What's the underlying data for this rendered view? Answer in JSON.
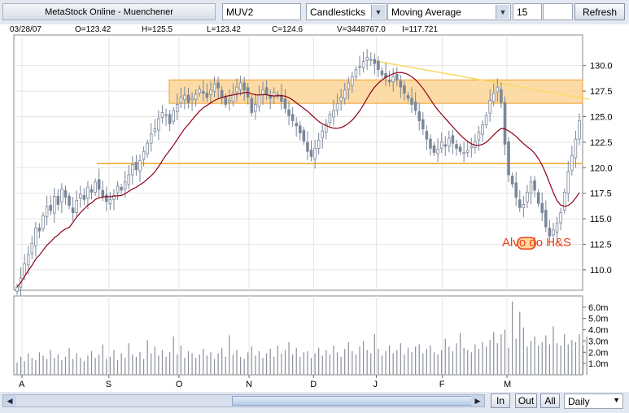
{
  "toolbar": {
    "title": "MetaStock Online - Muenchener",
    "symbol_value": "MUV2",
    "chart_type": "Candlesticks",
    "indicator": "Moving Average",
    "period_value": "15",
    "refresh_label": "Refresh"
  },
  "quote": {
    "date": "03/28/07",
    "open": "O=123.42",
    "high": "H=125.5",
    "low": "L=123.42",
    "close": "C=124.6",
    "volume": "V=3448767.0",
    "indicator": "I=117.721"
  },
  "annotation": {
    "label": "Alvo do H&S"
  },
  "bottom": {
    "zoom_in_label": "In",
    "zoom_out_label": "Out",
    "all_label": "All",
    "interval": "Daily"
  },
  "colors": {
    "candle": "#7a8699",
    "moving_average": "#8b0016",
    "support_line": "#f5a623",
    "resistance_band": "#fcd596",
    "trend_line": "#f6dc6a",
    "annotation": "#e8401c"
  },
  "chart_data": {
    "type": "candlestick",
    "price_axis": {
      "ylim": [
        108,
        133
      ],
      "ticks": [
        "130.0",
        "127.5",
        "125.0",
        "122.5",
        "120.0",
        "117.5",
        "115.0",
        "112.5",
        "110.0"
      ]
    },
    "volume_axis": {
      "ylim": [
        0,
        7000000
      ],
      "ticks": [
        "6.0m",
        "5.0m",
        "4.0m",
        "3.0m",
        "2.0m",
        "1.0m"
      ]
    },
    "month_labels": [
      "A",
      "S",
      "O",
      "N",
      "D",
      "J",
      "F",
      "M"
    ],
    "moving_average_period": 15,
    "support_level": 120.4,
    "resistance_band": [
      126.3,
      128.6
    ],
    "trend_line": {
      "from": [
        "J",
        130.5
      ],
      "to": [
        "end",
        126.7
      ]
    },
    "target_level": 112.6,
    "closes": [
      108.3,
      109.2,
      110.6,
      111.5,
      112.6,
      114.1,
      113.8,
      115.3,
      116.2,
      115.8,
      117.2,
      116.4,
      117.9,
      117.1,
      116.3,
      115.6,
      116.8,
      117.4,
      116.9,
      118.1,
      117.6,
      118.6,
      117.9,
      117.2,
      116.7,
      116.9,
      117.3,
      118.2,
      117.8,
      118.6,
      119.3,
      120.3,
      119.8,
      120.7,
      121.6,
      122.4,
      123.3,
      123.8,
      124.8,
      125.4,
      125.2,
      124.3,
      125.6,
      126.2,
      126.9,
      127.1,
      126.4,
      126.8,
      127.2,
      127.7,
      127.3,
      126.9,
      127.6,
      128.2,
      127.8,
      126.9,
      126.2,
      126.6,
      127.3,
      127.9,
      128.3,
      127.6,
      126.9,
      125.4,
      126.2,
      127.1,
      127.6,
      127.2,
      126.8,
      127.4,
      127.1,
      126.5,
      125.8,
      125.1,
      124.6,
      124.1,
      123.4,
      122.6,
      121.6,
      121.1,
      121.9,
      122.7,
      123.6,
      124.3,
      125.2,
      125.6,
      126.3,
      126.9,
      127.6,
      128.3,
      128.9,
      129.6,
      129.9,
      130.4,
      130.8,
      130.6,
      130.2,
      129.6,
      129.1,
      128.8,
      128.4,
      128.9,
      128.6,
      127.9,
      127.3,
      126.8,
      126.2,
      125.6,
      124.6,
      123.8,
      122.8,
      121.9,
      121.5,
      121.8,
      122.5,
      122.1,
      122.9,
      122.4,
      121.9,
      121.6,
      121.5,
      121.7,
      122.1,
      122.6,
      123.5,
      124.2,
      125.1,
      126.6,
      127.3,
      127.9,
      126.4,
      122.3,
      119.3,
      118.4,
      117.1,
      116.1,
      116.4,
      117.6,
      118.6,
      117.8,
      116.5,
      115.6,
      114.2,
      113.3,
      113.9,
      114.6,
      115.6,
      117.6,
      119.6,
      121.2,
      122.8,
      124.6
    ],
    "volume_millions": [
      1.1,
      1.6,
      1.2,
      1.9,
      1.5,
      1.3,
      2.0,
      1.7,
      1.4,
      2.2,
      1.5,
      1.8,
      1.3,
      1.6,
      2.4,
      1.4,
      1.9,
      1.5,
      1.2,
      1.7,
      2.1,
      1.5,
      1.8,
      2.7,
      1.4,
      1.6,
      2.2,
      1.3,
      1.9,
      1.5,
      2.8,
      1.8,
      1.6,
      2.0,
      1.4,
      3.1,
      1.9,
      2.5,
      1.7,
      2.2,
      1.6,
      2.0,
      3.4,
      1.8,
      2.6,
      1.5,
      2.1,
      1.9,
      1.5,
      1.8,
      2.3,
      1.7,
      2.0,
      1.4,
      1.9,
      2.4,
      1.6,
      3.5,
      1.8,
      2.2,
      1.6,
      1.4,
      2.0,
      2.5,
      1.7,
      2.1,
      1.5,
      1.9,
      2.3,
      1.6,
      2.6,
      1.9,
      2.2,
      2.9,
      1.8,
      2.4,
      1.6,
      2.0,
      2.1,
      1.5,
      1.9,
      2.4,
      1.7,
      2.2,
      1.8,
      2.6,
      2.0,
      1.6,
      2.3,
      2.9,
      2.1,
      1.8,
      2.5,
      3.0,
      2.2,
      1.9,
      3.6,
      2.3,
      1.7,
      2.1,
      2.6,
      1.9,
      2.2,
      2.8,
      1.8,
      2.4,
      2.0,
      2.5,
      2.7,
      1.9,
      2.3,
      2.6,
      2.0,
      1.8,
      2.2,
      3.2,
      2.5,
      2.1,
      2.8,
      3.7,
      2.4,
      2.2,
      2.0,
      2.7,
      2.3,
      2.9,
      2.5,
      3.1,
      3.8,
      2.8,
      3.6,
      4.0,
      2.4,
      6.5,
      3.2,
      5.6,
      4.2,
      2.5,
      3.0,
      3.4,
      2.6,
      2.9,
      3.5,
      2.7,
      4.3,
      2.8,
      2.6,
      3.6,
      2.7,
      3.1,
      2.9,
      3.6,
      2.6,
      3.4
    ]
  }
}
